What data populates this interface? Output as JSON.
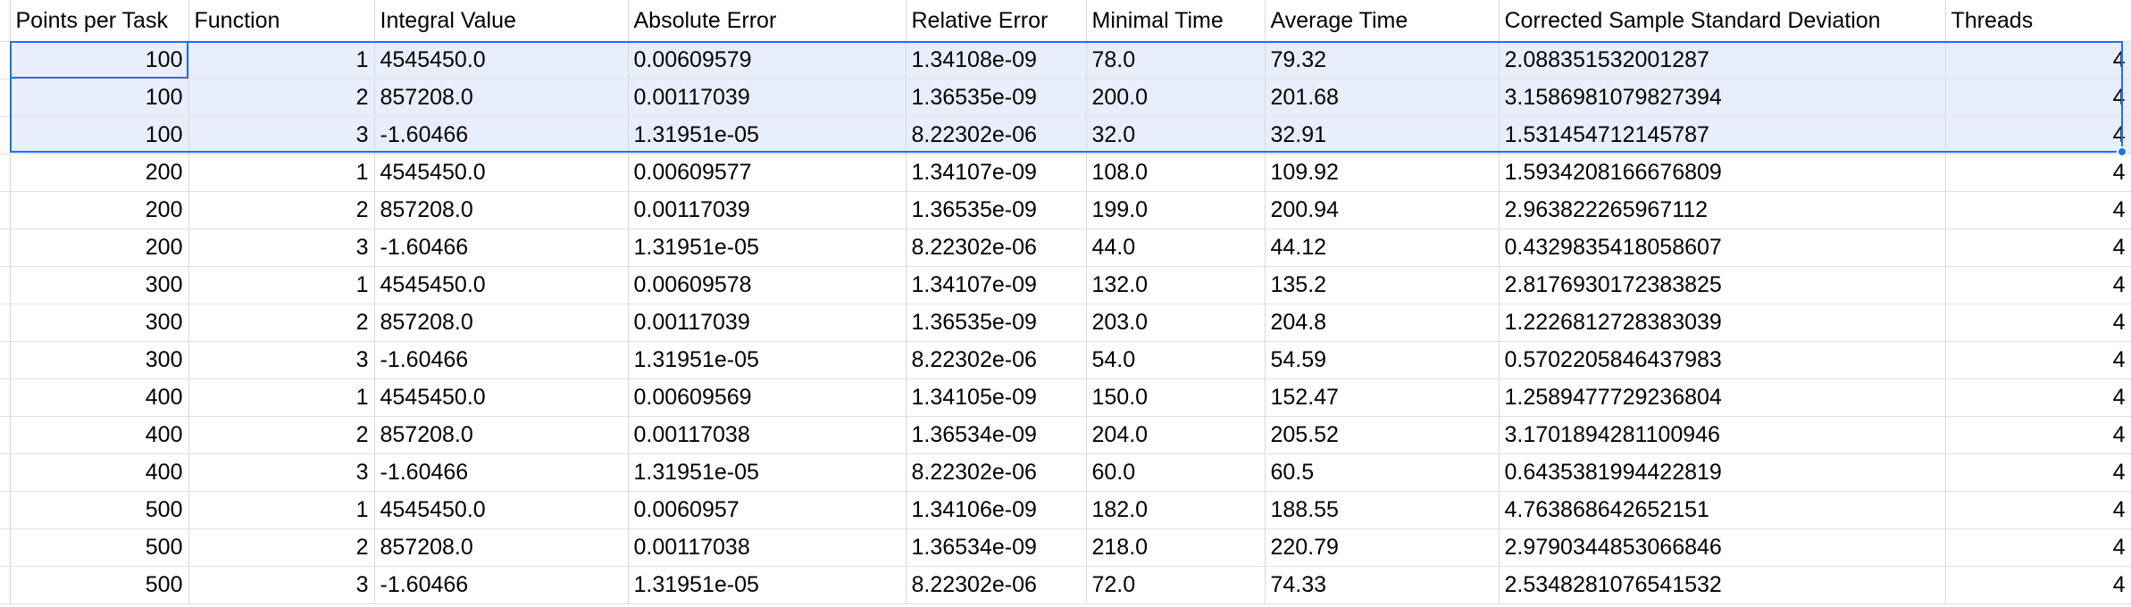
{
  "sheet": {
    "headers": [
      "Points per Task",
      "Function",
      "Integral Value",
      "Absolute Error",
      "Relative Error",
      "Minimal Time",
      "Average Time",
      "Corrected Sample Standard Deviation",
      "Threads"
    ],
    "rows": [
      [
        "100",
        "1",
        "4545450.0",
        "0.00609579",
        "1.34108e-09",
        "78.0",
        "79.32",
        "2.088351532001287",
        "4"
      ],
      [
        "100",
        "2",
        "857208.0",
        "0.00117039",
        "1.36535e-09",
        "200.0",
        "201.68",
        "3.1586981079827394",
        "4"
      ],
      [
        "100",
        "3",
        "-1.60466",
        "1.31951e-05",
        "8.22302e-06",
        "32.0",
        "32.91",
        "1.531454712145787",
        "4"
      ],
      [
        "200",
        "1",
        "4545450.0",
        "0.00609577",
        "1.34107e-09",
        "108.0",
        "109.92",
        "1.5934208166676809",
        "4"
      ],
      [
        "200",
        "2",
        "857208.0",
        "0.00117039",
        "1.36535e-09",
        "199.0",
        "200.94",
        "2.963822265967112",
        "4"
      ],
      [
        "200",
        "3",
        "-1.60466",
        "1.31951e-05",
        "8.22302e-06",
        "44.0",
        "44.12",
        "0.4329835418058607",
        "4"
      ],
      [
        "300",
        "1",
        "4545450.0",
        "0.00609578",
        "1.34107e-09",
        "132.0",
        "135.2",
        "2.8176930172383825",
        "4"
      ],
      [
        "300",
        "2",
        "857208.0",
        "0.00117039",
        "1.36535e-09",
        "203.0",
        "204.8",
        "1.2226812728383039",
        "4"
      ],
      [
        "300",
        "3",
        "-1.60466",
        "1.31951e-05",
        "8.22302e-06",
        "54.0",
        "54.59",
        "0.5702205846437983",
        "4"
      ],
      [
        "400",
        "1",
        "4545450.0",
        "0.00609569",
        "1.34105e-09",
        "150.0",
        "152.47",
        "1.2589477729236804",
        "4"
      ],
      [
        "400",
        "2",
        "857208.0",
        "0.00117038",
        "1.36534e-09",
        "204.0",
        "205.52",
        "3.1701894281100946",
        "4"
      ],
      [
        "400",
        "3",
        "-1.60466",
        "1.31951e-05",
        "8.22302e-06",
        "60.0",
        "60.5",
        "0.6435381994422819",
        "4"
      ],
      [
        "500",
        "1",
        "4545450.0",
        "0.0060957",
        "1.34106e-09",
        "182.0",
        "188.55",
        "4.763868642652151",
        "4"
      ],
      [
        "500",
        "2",
        "857208.0",
        "0.00117038",
        "1.36534e-09",
        "218.0",
        "220.79",
        "2.9790344853066846",
        "4"
      ],
      [
        "500",
        "3",
        "-1.60466",
        "1.31951e-05",
        "8.22302e-06",
        "72.0",
        "74.33",
        "2.5348281076541532",
        "4"
      ]
    ],
    "selected_rows": [
      0,
      1,
      2
    ],
    "selection_color": "#1a73e8",
    "selection_fill": "#e8eefb",
    "gridline_color": "#e2e2e2"
  }
}
